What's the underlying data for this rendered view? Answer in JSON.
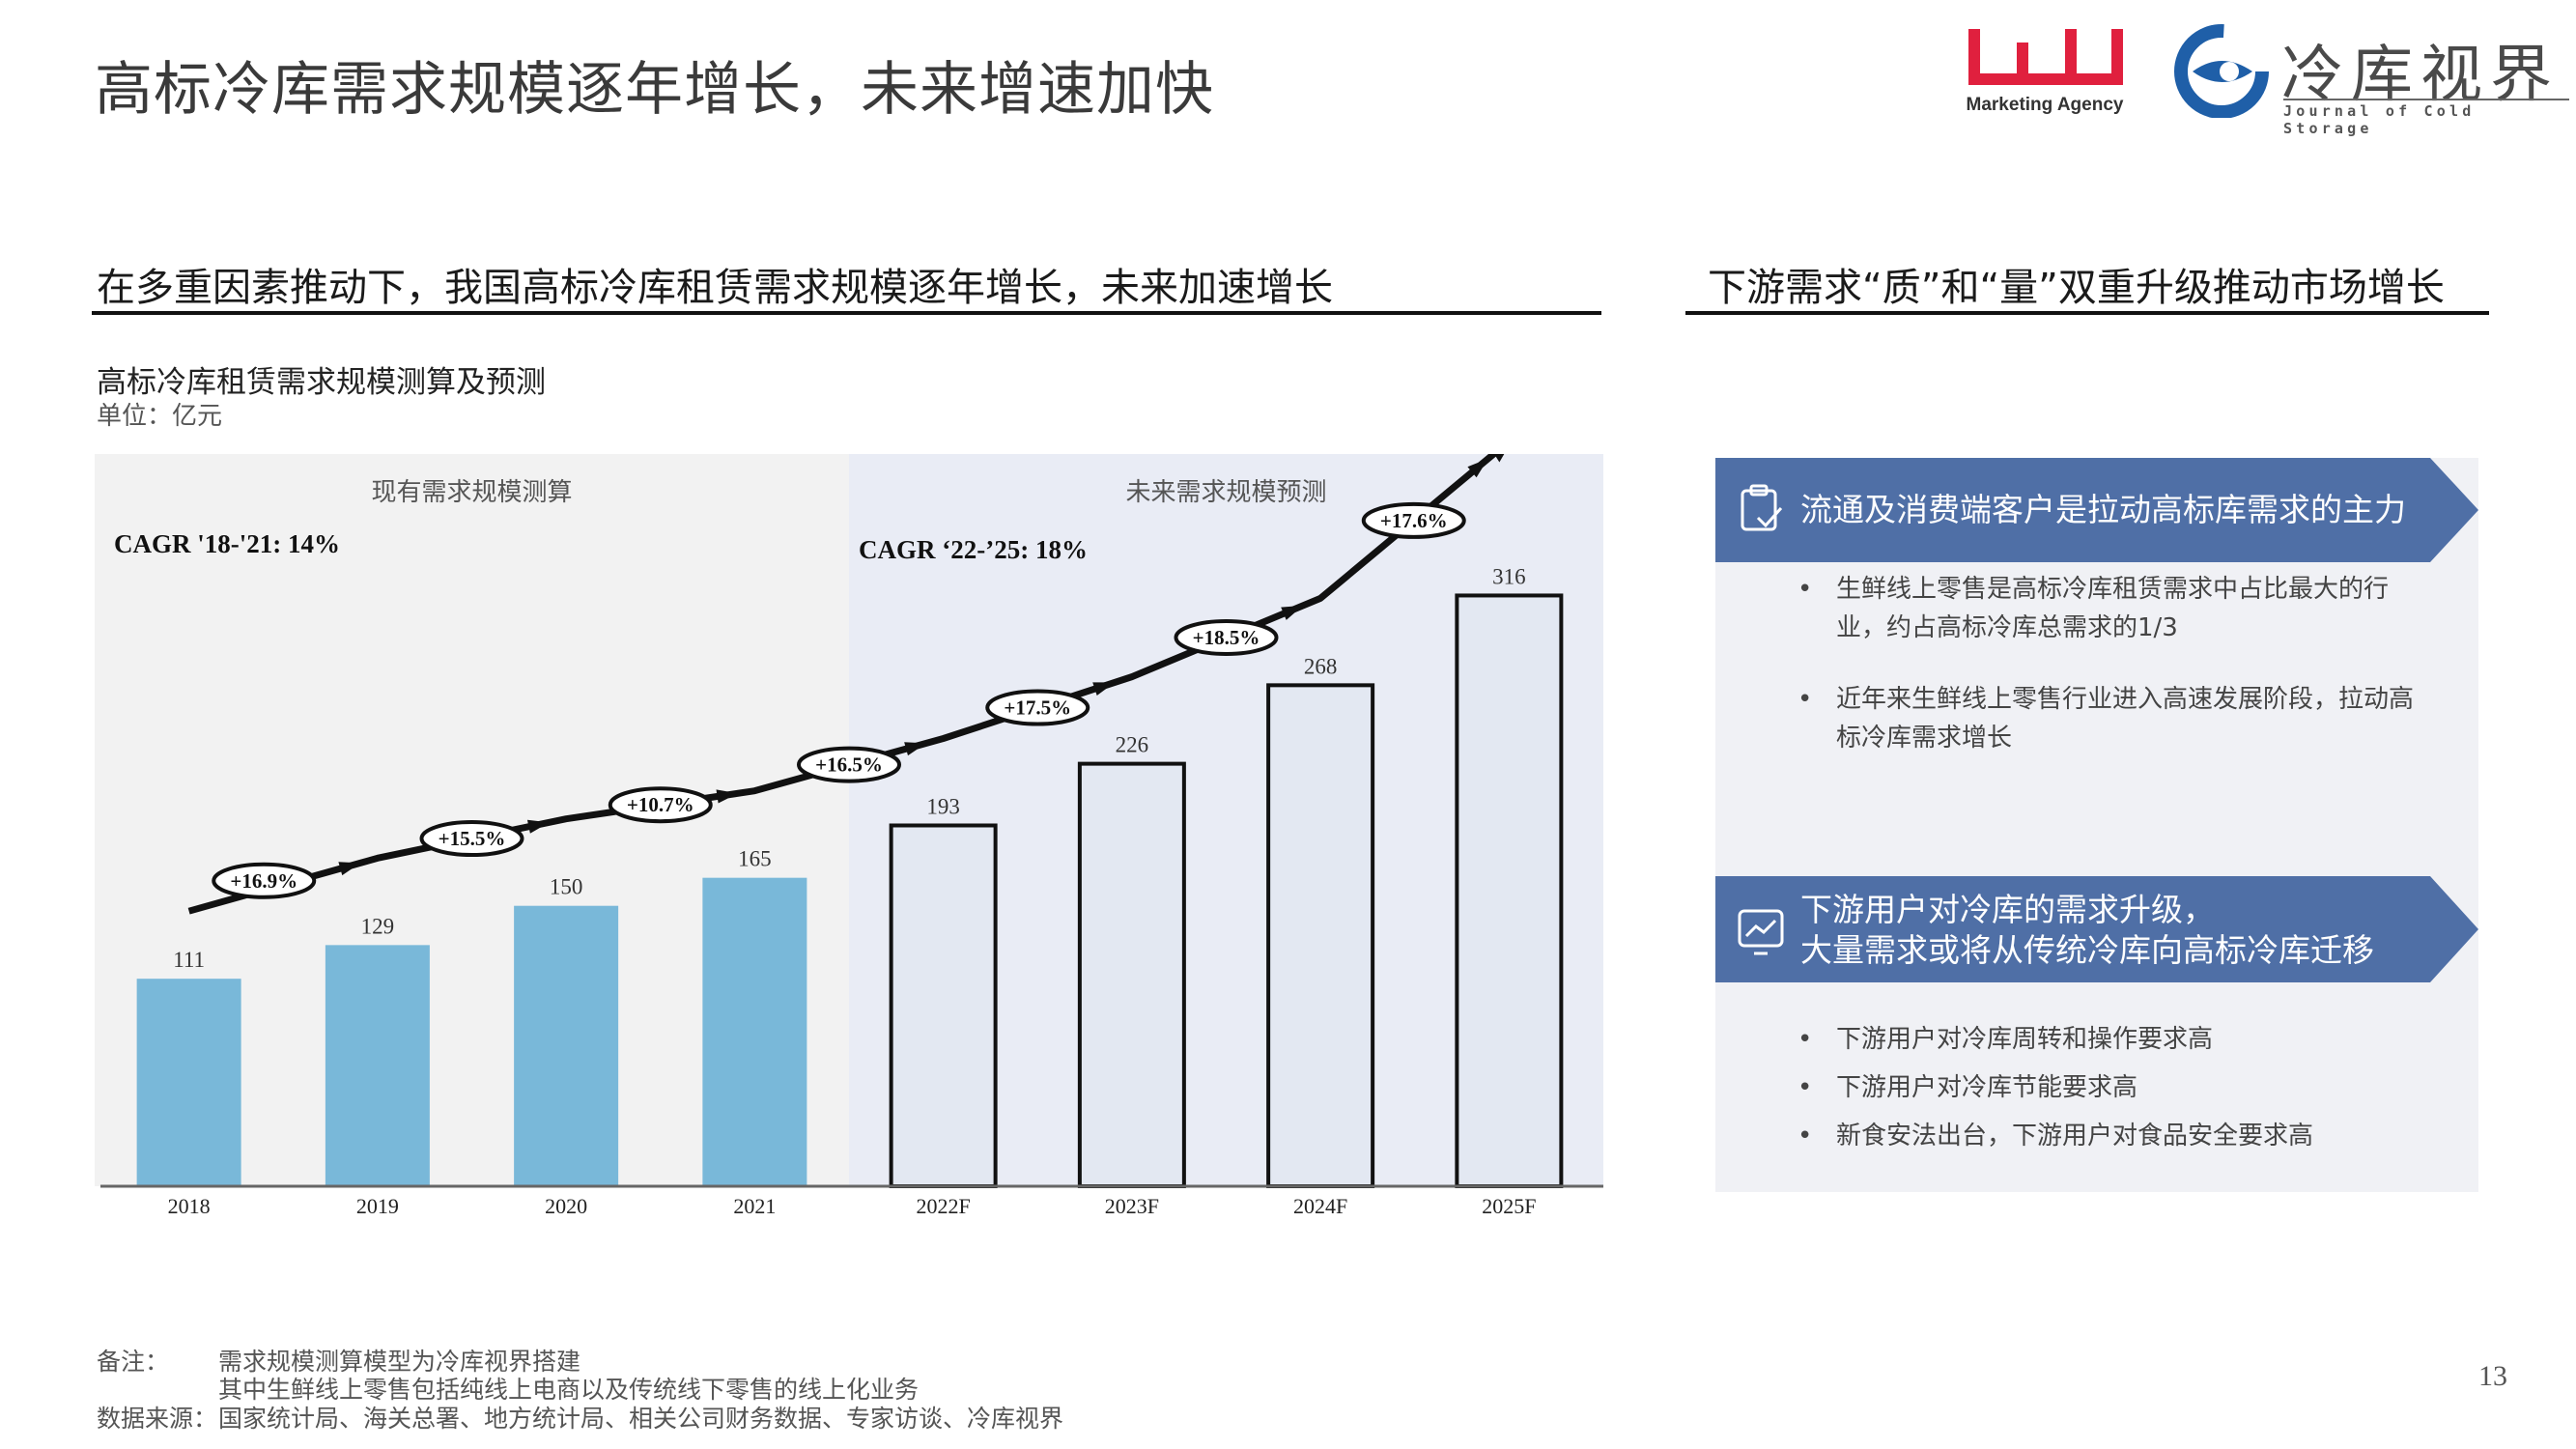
{
  "title": "高标冷库需求规模逐年增长，未来增速加快",
  "logos": {
    "wj_caption": "Marketing Agency",
    "cold_name": "冷库视界",
    "cold_sub": "Journal of Cold Storage",
    "wj_color": "#e0203e",
    "cold_color": "#1f5fa8"
  },
  "left_section": {
    "heading": "在多重因素推动下，我国高标冷库租赁需求规模逐年增长，未来加速增长"
  },
  "right_section": {
    "heading": "下游需求“质”和“量”双重升级推动市场增长",
    "block1": {
      "icon": "clipboard-check-icon",
      "title": "流通及消费端客户是拉动高标库需求的主力",
      "bullets": [
        "生鲜线上零售是高标冷库租赁需求中占比最大的行业，约占高标冷库总需求的1/3",
        "近年来生鲜线上零售行业进入高速发展阶段，拉动高标冷库需求增长"
      ]
    },
    "block2": {
      "icon": "trend-chart-icon",
      "title_lines": [
        "下游用户对冷库的需求升级，",
        "大量需求或将从传统冷库向高标冷库迁移"
      ],
      "bullets": [
        "下游用户对冷库周转和操作要求高",
        "下游用户对冷库节能要求高",
        "新食安法出台，下游用户对食品安全要求高"
      ]
    },
    "banner_color": "#4f6fa6"
  },
  "chart_data": {
    "type": "bar",
    "title": "高标冷库租赁需求规模测算及预测",
    "unit": "单位：亿元",
    "categories": [
      "2018",
      "2019",
      "2020",
      "2021",
      "2022F",
      "2023F",
      "2024F",
      "2025F"
    ],
    "values": [
      111,
      129,
      150,
      165,
      193,
      226,
      268,
      316
    ],
    "growth_labels": [
      "+16.9%",
      "+15.5%",
      "+10.7%",
      "+16.5%",
      "+17.5%",
      "+18.5%",
      "+17.6%"
    ],
    "panels": [
      {
        "label": "现有需求规模测算",
        "cagr": "CAGR '18-'21: 14%",
        "range": [
          "2018",
          "2021"
        ]
      },
      {
        "label": "未来需求规模预测",
        "cagr": "CAGR ‘22-’25: 18%",
        "range": [
          "2022F",
          "2025F"
        ]
      }
    ],
    "ylim": [
      0,
      340
    ],
    "colors": {
      "actual": "#79b8d9",
      "forecast_fill": "#e3e8f2",
      "forecast_stroke": "#111111",
      "forecast_panel": "#e9ecf5",
      "actual_panel": "#f2f2f2"
    }
  },
  "footer": {
    "note_label": "备注：",
    "note_lines": [
      "需求规模测算模型为冷库视界搭建",
      "其中生鲜线上零售包括纯线上电商以及传统线下零售的线上化业务"
    ],
    "source_label": "数据来源：",
    "source_text": "国家统计局、海关总署、地方统计局、相关公司财务数据、专家访谈、冷库视界"
  },
  "page_number": "13"
}
